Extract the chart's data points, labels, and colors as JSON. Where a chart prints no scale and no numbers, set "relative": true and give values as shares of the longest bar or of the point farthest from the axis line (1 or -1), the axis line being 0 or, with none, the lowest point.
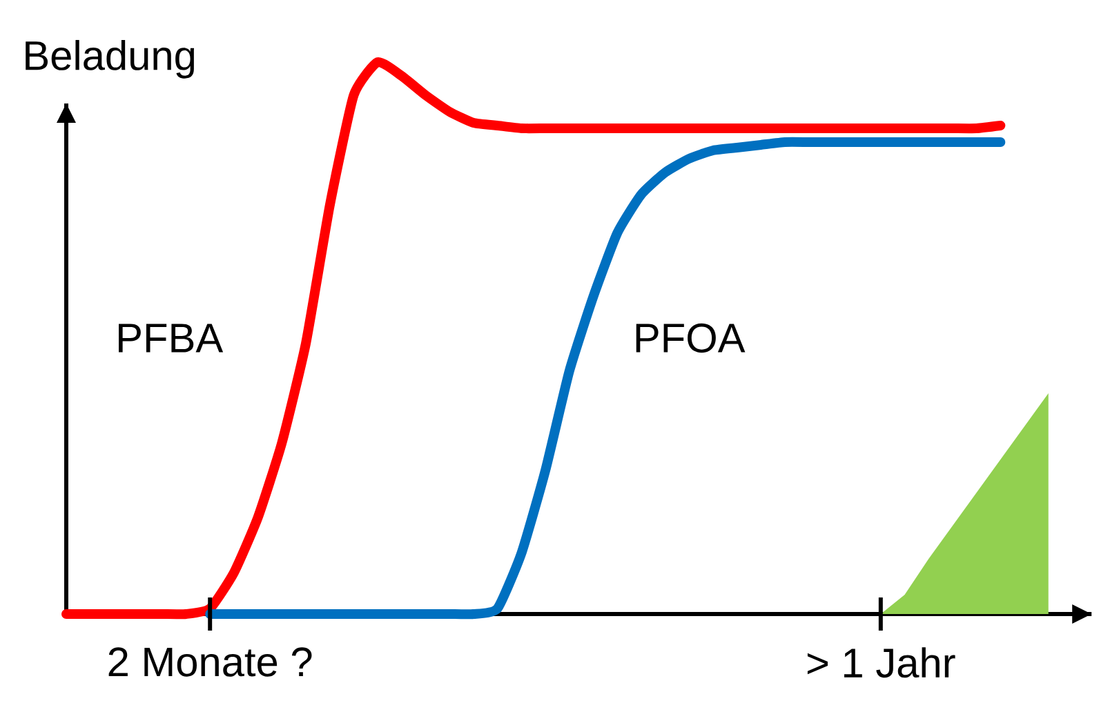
{
  "chart_data": {
    "type": "line",
    "relative": true,
    "ylabel": "Beladung",
    "categories": [
      null,
      null,
      null,
      null,
      null,
      null,
      "2 Monate ?",
      null,
      null,
      null,
      null,
      null,
      null,
      null,
      null,
      null,
      null,
      null,
      null,
      null,
      null,
      null,
      null,
      null,
      null,
      null,
      null,
      null,
      null,
      null,
      null,
      null,
      null,
      null,
      "> 1 Jahr",
      null,
      null,
      null,
      null,
      null,
      null,
      null
    ],
    "series": [
      {
        "name": "PFBA",
        "color": "#ff0000",
        "values": [
          0,
          0,
          0,
          0,
          0,
          0,
          0.01,
          0.075,
          0.175,
          0.31,
          0.49,
          0.74,
          0.94,
          1,
          0.975,
          0.94,
          0.91,
          0.89,
          0.885,
          0.88,
          0.88,
          0.88,
          0.88,
          0.88,
          0.88,
          0.88,
          0.88,
          0.88,
          0.88,
          0.88,
          0.88,
          0.88,
          0.88,
          0.88,
          0.88,
          0.88,
          0.88,
          0.88,
          0.88,
          0.885,
          null,
          null
        ]
      },
      {
        "name": "PFOA",
        "color": "#0070c0",
        "values": [
          null,
          null,
          null,
          null,
          null,
          null,
          0,
          0,
          0,
          0,
          0,
          0,
          0,
          0,
          0,
          0,
          0,
          0,
          0.01,
          0.11,
          0.26,
          0.44,
          0.575,
          0.69,
          0.76,
          0.8,
          0.825,
          0.84,
          0.845,
          0.85,
          0.855,
          0.855,
          0.855,
          0.855,
          0.855,
          0.855,
          0.855,
          0.855,
          0.855,
          0.855,
          null,
          null
        ]
      },
      {
        "type": "area",
        "color": "#92d050",
        "values": [
          null,
          null,
          null,
          null,
          null,
          null,
          null,
          null,
          null,
          null,
          null,
          null,
          null,
          null,
          null,
          null,
          null,
          null,
          null,
          null,
          null,
          null,
          null,
          null,
          null,
          null,
          null,
          null,
          null,
          null,
          null,
          null,
          null,
          null,
          0,
          0.035,
          0.1,
          0.16,
          0.22,
          0.28,
          0.34,
          0.4
        ]
      }
    ]
  }
}
